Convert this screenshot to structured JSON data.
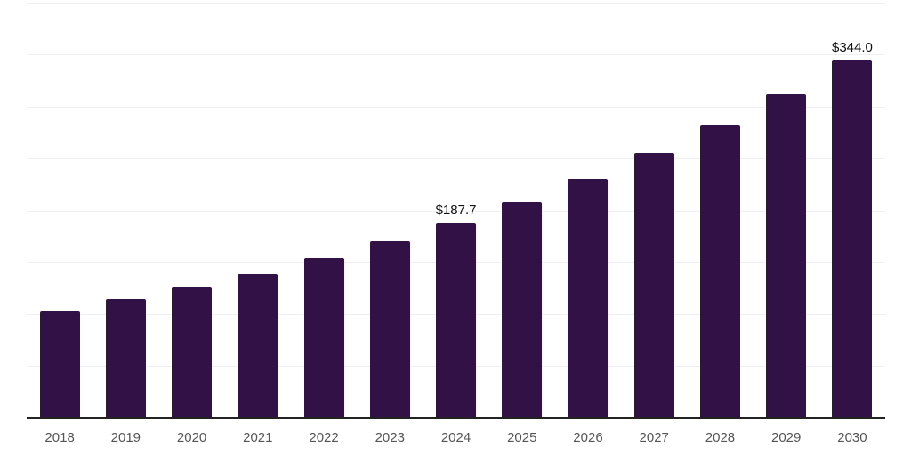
{
  "chart_data": {
    "type": "bar",
    "title": "",
    "xlabel": "",
    "ylabel": "",
    "categories": [
      "2018",
      "2019",
      "2020",
      "2021",
      "2022",
      "2023",
      "2024",
      "2025",
      "2026",
      "2027",
      "2028",
      "2029",
      "2030"
    ],
    "values": [
      102.8,
      113.6,
      125.8,
      138.6,
      153.8,
      170.2,
      187.7,
      208.3,
      230.8,
      255.2,
      282.0,
      311.8,
      344.0
    ],
    "data_labels": [
      null,
      null,
      null,
      null,
      null,
      null,
      "$187.7",
      null,
      null,
      null,
      null,
      null,
      "$344.0"
    ],
    "value_prefix": "$",
    "ylim": [
      0,
      400
    ],
    "grid_step": 50,
    "grid": true,
    "legend": false,
    "y_tick_labels_visible": false
  },
  "colors": {
    "background": "#FFFFFF",
    "bar": "#321146",
    "gridline": "#EFEEF3",
    "axis_line": "#222222",
    "tick_label": "#555555",
    "data_label": "#111111"
  }
}
